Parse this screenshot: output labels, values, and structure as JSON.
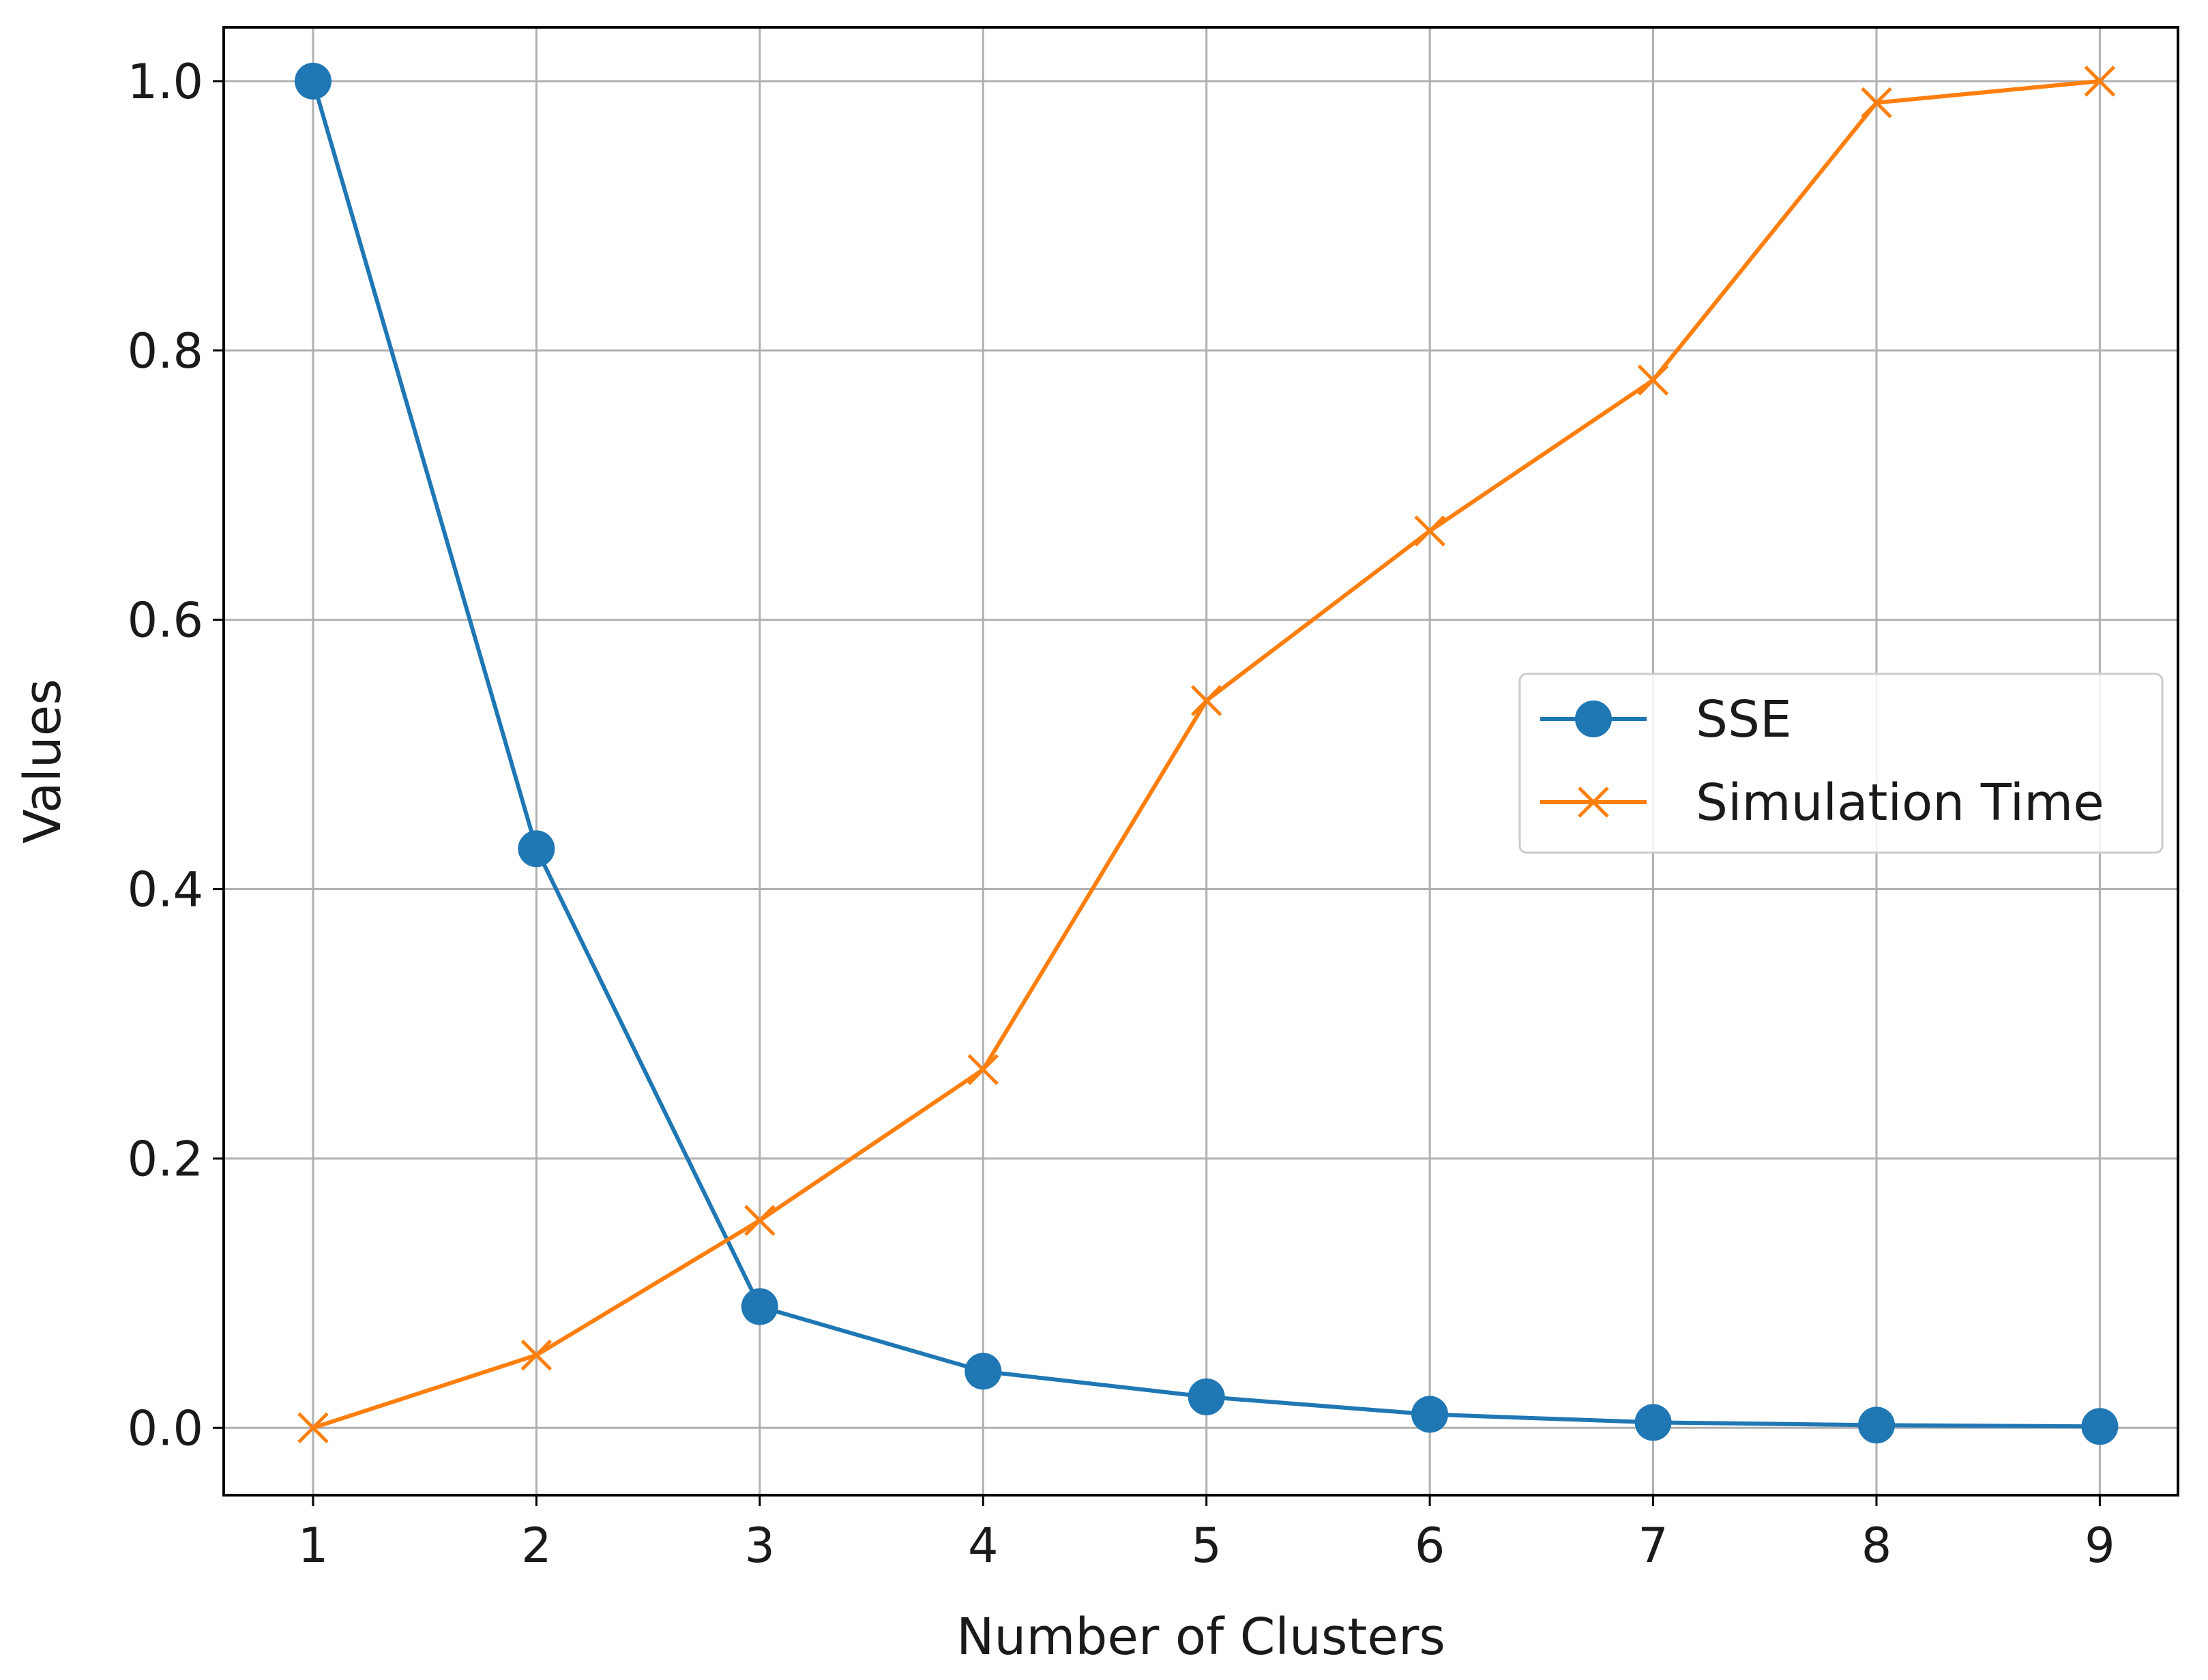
{
  "chart_data": {
    "type": "line",
    "title": "",
    "xlabel": "Number of Clusters",
    "ylabel": "Values",
    "x": [
      1,
      2,
      3,
      4,
      5,
      6,
      7,
      8,
      9
    ],
    "xlim": [
      0.6,
      9.35
    ],
    "ylim": [
      -0.05,
      1.04
    ],
    "xticks": [
      "1",
      "2",
      "3",
      "4",
      "5",
      "6",
      "7",
      "8",
      "9"
    ],
    "yticks": [
      "0.0",
      "0.2",
      "0.4",
      "0.6",
      "0.8",
      "1.0"
    ],
    "grid": true,
    "legend_position": "center-right",
    "series": [
      {
        "name": "SSE",
        "color": "#1f77b4",
        "marker": "circle",
        "values": [
          1.0,
          0.43,
          0.09,
          0.042,
          0.023,
          0.01,
          0.004,
          0.002,
          0.001
        ]
      },
      {
        "name": "Simulation Time",
        "color": "#ff7f0e",
        "marker": "x",
        "values": [
          0.0,
          0.054,
          0.154,
          0.266,
          0.54,
          0.666,
          0.778,
          0.984,
          1.0
        ]
      }
    ]
  }
}
